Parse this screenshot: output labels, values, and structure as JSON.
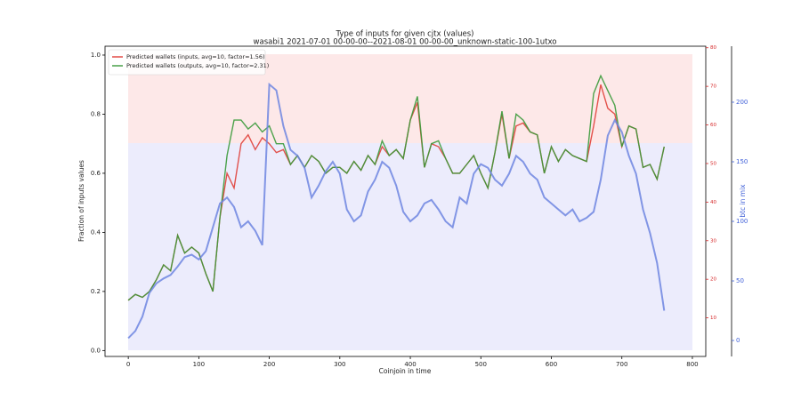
{
  "chart_data": {
    "type": "line",
    "title": "Type of inputs for given cjtx (values)",
    "subtitle": "wasabi1 2021-07-01 00-00-00--2021-08-01 00-00-00_unknown-static-100-1utxo",
    "xlabel": "Coinjoin in time",
    "ylabel": "Fraction of inputs values",
    "y2label": "btc in mix",
    "legend": "upper left",
    "xlim": [
      -33,
      819
    ],
    "xticks": [
      0,
      100,
      200,
      300,
      400,
      500,
      600,
      700,
      800
    ],
    "ylim": [
      -0.02,
      1.03
    ],
    "yticks": [
      {
        "value": 0,
        "label": "0.0"
      },
      {
        "value": 0.2,
        "label": "0.2"
      },
      {
        "value": 0.4,
        "label": "0.4"
      },
      {
        "value": 0.6,
        "label": "0.6"
      },
      {
        "value": 0.8,
        "label": "0.8"
      },
      {
        "value": 1,
        "label": "1.0"
      }
    ],
    "y2lim": [
      -13.4,
      247
    ],
    "y2ticks": [
      0,
      50,
      100,
      150,
      200
    ],
    "y3lim": [
      0,
      80.4
    ],
    "y3ticks": [
      10,
      20,
      30,
      40,
      50,
      60,
      70,
      80
    ],
    "x": [
      0,
      10,
      20,
      30,
      40,
      50,
      60,
      70,
      80,
      90,
      100,
      110,
      120,
      130,
      140,
      150,
      160,
      170,
      180,
      190,
      200,
      210,
      220,
      230,
      240,
      250,
      260,
      270,
      280,
      290,
      300,
      310,
      320,
      330,
      340,
      350,
      360,
      370,
      380,
      390,
      400,
      410,
      420,
      430,
      440,
      450,
      460,
      470,
      480,
      490,
      500,
      510,
      520,
      530,
      540,
      550,
      560,
      570,
      580,
      590,
      600,
      610,
      620,
      630,
      640,
      650,
      660,
      670,
      680,
      690,
      700,
      710,
      720,
      730,
      740,
      750,
      760
    ],
    "series": [
      {
        "name": "Predicted wallets (inputs, avg=10, factor=1.56)",
        "color": "#e0403a",
        "values": [
          0.17,
          0.19,
          0.18,
          0.2,
          0.24,
          0.29,
          0.27,
          0.39,
          0.33,
          0.35,
          0.33,
          0.26,
          0.2,
          0.45,
          0.6,
          0.55,
          0.7,
          0.73,
          0.68,
          0.72,
          0.7,
          0.67,
          0.68,
          0.63,
          0.66,
          0.62,
          0.66,
          0.64,
          0.6,
          0.62,
          0.62,
          0.6,
          0.64,
          0.61,
          0.66,
          0.63,
          0.69,
          0.66,
          0.68,
          0.65,
          0.78,
          0.84,
          0.62,
          0.7,
          0.69,
          0.65,
          0.6,
          0.6,
          0.63,
          0.66,
          0.6,
          0.55,
          0.67,
          0.8,
          0.65,
          0.76,
          0.77,
          0.74,
          0.73,
          0.6,
          0.69,
          0.64,
          0.68,
          0.66,
          0.65,
          0.64,
          0.76,
          0.9,
          0.82,
          0.8,
          0.69,
          0.76,
          0.75,
          0.62,
          0.63,
          0.58,
          0.69
        ]
      },
      {
        "name": "Predicted wallets (outputs, avg=10, factor=2.31)",
        "color": "#3a9a3a",
        "values": [
          0.17,
          0.19,
          0.18,
          0.2,
          0.24,
          0.29,
          0.27,
          0.39,
          0.33,
          0.35,
          0.33,
          0.26,
          0.2,
          0.45,
          0.66,
          0.78,
          0.78,
          0.75,
          0.77,
          0.74,
          0.76,
          0.7,
          0.7,
          0.63,
          0.66,
          0.62,
          0.66,
          0.64,
          0.6,
          0.62,
          0.62,
          0.6,
          0.64,
          0.61,
          0.66,
          0.63,
          0.71,
          0.66,
          0.68,
          0.65,
          0.78,
          0.86,
          0.62,
          0.7,
          0.71,
          0.65,
          0.6,
          0.6,
          0.63,
          0.66,
          0.6,
          0.55,
          0.67,
          0.81,
          0.65,
          0.8,
          0.78,
          0.74,
          0.73,
          0.6,
          0.69,
          0.64,
          0.68,
          0.66,
          0.65,
          0.64,
          0.87,
          0.93,
          0.88,
          0.83,
          0.69,
          0.76,
          0.75,
          0.62,
          0.63,
          0.58,
          0.69
        ]
      },
      {
        "name": "btc in mix",
        "color": "#6f86e0",
        "axis": "y2",
        "values": [
          2,
          8,
          20,
          40,
          48,
          52,
          55,
          62,
          70,
          72,
          68,
          75,
          95,
          115,
          120,
          112,
          95,
          100,
          92,
          80,
          215,
          210,
          180,
          160,
          155,
          145,
          120,
          130,
          142,
          150,
          140,
          110,
          100,
          105,
          125,
          135,
          150,
          145,
          130,
          108,
          100,
          105,
          115,
          118,
          110,
          100,
          95,
          120,
          115,
          140,
          148,
          145,
          135,
          130,
          140,
          155,
          150,
          140,
          135,
          120,
          115,
          110,
          105,
          110,
          100,
          103,
          108,
          135,
          172,
          185,
          175,
          155,
          140,
          110,
          90,
          65,
          25
        ]
      }
    ]
  }
}
